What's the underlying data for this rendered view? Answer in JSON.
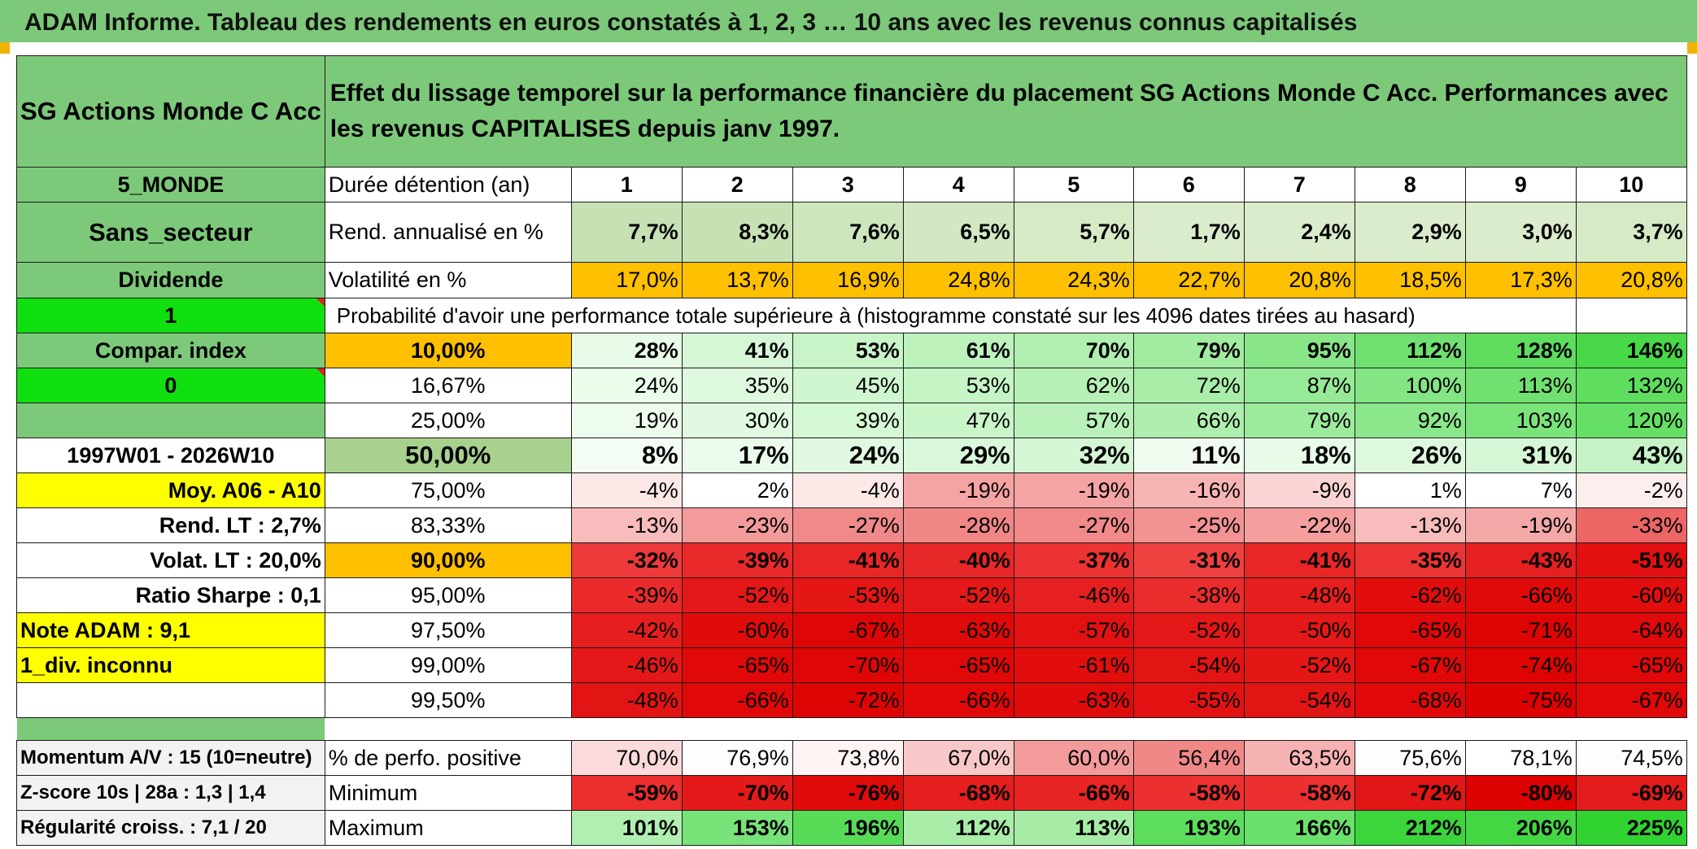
{
  "title": "ADAM Informe. Tableau des rendements en euros constatés à 1, 2, 3 … 10 ans avec les revenus connus capitalisés",
  "fund_name": "SG Actions Monde C Acc",
  "description": "Effet du lissage temporel sur la performance financière du placement SG Actions Monde C Acc. Performances avec les revenus CAPITALISES depuis janv 1997.",
  "side": {
    "zone": "5_MONDE",
    "secteur": "Sans_secteur",
    "dividende": "Dividende",
    "flag1": "1",
    "compar": "Compar. index",
    "flag0": "0",
    "period": "1997W01 - 2026W10",
    "moy": "Moy. A06 - A10",
    "rend_lt": "Rend. LT :    2,7%",
    "volat_lt": "Volat. LT :    20,0%",
    "sharpe": "Ratio Sharpe :    0,1",
    "note": "Note ADAM : 9,1",
    "div": "1_div. inconnu",
    "momentum": "Momentum A/V : 15 (10=neutre)",
    "zscore": "Z-score 10s | 28a : 1,3 | 1,4",
    "regularite": "Régularité croiss. : 7,1 / 20"
  },
  "labels": {
    "duree": "Durée détention (an)",
    "rend": "Rend. annualisé en %",
    "vol": "Volatilité en %",
    "proba": "Probabilité d'avoir une performance totale supérieure à (histogramme constaté sur les 4096 dates tirées au hasard)",
    "positive": "% de perfo. positive",
    "minimum": "Minimum",
    "maximum": "Maximum"
  },
  "years": [
    "1",
    "2",
    "3",
    "4",
    "5",
    "6",
    "7",
    "8",
    "9",
    "10"
  ],
  "rend_values": [
    "7,7%",
    "8,3%",
    "7,6%",
    "6,5%",
    "5,7%",
    "1,7%",
    "2,4%",
    "2,9%",
    "3,0%",
    "3,7%"
  ],
  "vol_values": [
    "17,0%",
    "13,7%",
    "16,9%",
    "24,8%",
    "24,3%",
    "22,7%",
    "20,8%",
    "18,5%",
    "17,3%",
    "20,8%"
  ],
  "prob_rows": [
    {
      "label": "10,00%",
      "values": [
        "28%",
        "41%",
        "53%",
        "61%",
        "70%",
        "79%",
        "95%",
        "112%",
        "128%",
        "146%"
      ]
    },
    {
      "label": "16,67%",
      "values": [
        "24%",
        "35%",
        "45%",
        "53%",
        "62%",
        "72%",
        "87%",
        "100%",
        "113%",
        "132%"
      ]
    },
    {
      "label": "25,00%",
      "values": [
        "19%",
        "30%",
        "39%",
        "47%",
        "57%",
        "66%",
        "79%",
        "92%",
        "103%",
        "120%"
      ]
    },
    {
      "label": "50,00%",
      "values": [
        "8%",
        "17%",
        "24%",
        "29%",
        "32%",
        "11%",
        "18%",
        "26%",
        "31%",
        "43%"
      ]
    },
    {
      "label": "75,00%",
      "values": [
        "-4%",
        "2%",
        "-4%",
        "-19%",
        "-19%",
        "-16%",
        "-9%",
        "1%",
        "7%",
        "-2%"
      ]
    },
    {
      "label": "83,33%",
      "values": [
        "-13%",
        "-23%",
        "-27%",
        "-28%",
        "-27%",
        "-25%",
        "-22%",
        "-13%",
        "-19%",
        "-33%"
      ]
    },
    {
      "label": "90,00%",
      "values": [
        "-32%",
        "-39%",
        "-41%",
        "-40%",
        "-37%",
        "-31%",
        "-41%",
        "-35%",
        "-43%",
        "-51%"
      ]
    },
    {
      "label": "95,00%",
      "values": [
        "-39%",
        "-52%",
        "-53%",
        "-52%",
        "-46%",
        "-38%",
        "-48%",
        "-62%",
        "-66%",
        "-60%"
      ]
    },
    {
      "label": "97,50%",
      "values": [
        "-42%",
        "-60%",
        "-67%",
        "-63%",
        "-57%",
        "-52%",
        "-50%",
        "-65%",
        "-71%",
        "-64%"
      ]
    },
    {
      "label": "99,00%",
      "values": [
        "-46%",
        "-65%",
        "-70%",
        "-65%",
        "-61%",
        "-54%",
        "-52%",
        "-67%",
        "-74%",
        "-65%"
      ]
    },
    {
      "label": "99,50%",
      "values": [
        "-48%",
        "-66%",
        "-72%",
        "-66%",
        "-63%",
        "-55%",
        "-54%",
        "-68%",
        "-75%",
        "-67%"
      ]
    }
  ],
  "positive_values": [
    "70,0%",
    "76,9%",
    "73,8%",
    "67,0%",
    "60,0%",
    "56,4%",
    "63,5%",
    "75,6%",
    "78,1%",
    "74,5%"
  ],
  "min_values": [
    "-59%",
    "-70%",
    "-76%",
    "-68%",
    "-66%",
    "-58%",
    "-58%",
    "-72%",
    "-80%",
    "-69%"
  ],
  "max_values": [
    "101%",
    "153%",
    "196%",
    "112%",
    "113%",
    "193%",
    "166%",
    "212%",
    "206%",
    "225%"
  ],
  "colors": {
    "header_green": "#7dc97a",
    "bright_green": "#10e010",
    "orange": "#ffc000",
    "yellow": "#ffff00",
    "red_text": "#d10000",
    "rend_cells": [
      "#c6e2b5",
      "#c6e2b5",
      "#cde6bd",
      "#d2e8c2",
      "#d6eac6",
      "#dbeccc",
      "#dbeccc",
      "#dbeccc",
      "#dbeccc",
      "#d6eac6"
    ],
    "prob_rows": [
      [
        "#e8fbe8",
        "#d6f7d6",
        "#c8f4c8",
        "#bdf2bd",
        "#b0efb0",
        "#a2eca2",
        "#88e688",
        "#70e170",
        "#5edd5e",
        "#48d848"
      ],
      [
        "#ebfceb",
        "#def9de",
        "#cff6cf",
        "#c5f4c5",
        "#b6f0b6",
        "#a8eda8",
        "#96e996",
        "#84e584",
        "#70e170",
        "#5edd5e"
      ],
      [
        "#eefcee",
        "#e0f9e0",
        "#d4f7d4",
        "#c9f5c9",
        "#baf1ba",
        "#aeeeae",
        "#9cea9c",
        "#8be78b",
        "#7ae47a",
        "#66df66"
      ],
      [
        "#f4fdf4",
        "#ebfbeb",
        "#e1f9e1",
        "#d9f7d9",
        "#d4f6d4",
        "#f1fcf1",
        "#e8fae8",
        "#def8de",
        "#d6f7d6",
        "#c6f3c6"
      ],
      [
        "#fde8e8",
        "#ffffff",
        "#fde8e8",
        "#f5a3a3",
        "#f5a3a3",
        "#f7b4b4",
        "#fad4d4",
        "#ffffff",
        "#ffffff",
        "#fdeeee"
      ],
      [
        "#f8bcbc",
        "#f39a9a",
        "#f08a8a",
        "#f08686",
        "#f08a8a",
        "#f29292",
        "#f49e9e",
        "#f8bcbc",
        "#f5a8a8",
        "#ec6666"
      ],
      [
        "#ee3a3a",
        "#ea2a2a",
        "#e82626",
        "#e82828",
        "#ec3232",
        "#ef4040",
        "#e82626",
        "#ec3434",
        "#e62020",
        "#e21010"
      ],
      [
        "#ea2a2a",
        "#e41818",
        "#e41616",
        "#e41818",
        "#e62020",
        "#ea2c2c",
        "#e61e1e",
        "#e20e0e",
        "#e00a0a",
        "#e20e0e"
      ],
      [
        "#e61e1e",
        "#e00c0c",
        "#de0606",
        "#e00a0a",
        "#e21212",
        "#e41818",
        "#e41818",
        "#e00808",
        "#de0404",
        "#e00a0a"
      ],
      [
        "#e41818",
        "#e00808",
        "#de0606",
        "#e00808",
        "#e20e0e",
        "#e21414",
        "#e41616",
        "#e00808",
        "#de0404",
        "#e00808"
      ],
      [
        "#e21414",
        "#e00808",
        "#de0404",
        "#e00808",
        "#e00c0c",
        "#e21212",
        "#e21414",
        "#e00808",
        "#de0202",
        "#e00808"
      ]
    ],
    "positive_cells": [
      "#fadada",
      "#fdfdfd",
      "#fef4f4",
      "#f8c8c8",
      "#f39a9a",
      "#f08888",
      "#f6b2b2",
      "#fdfdfd",
      "#ffffff",
      "#fdfdfd"
    ],
    "min_cells": [
      "#ec2e2e",
      "#e41a1a",
      "#e00c0c",
      "#e61e1e",
      "#e82424",
      "#ec3030",
      "#ec3030",
      "#e21616",
      "#de0202",
      "#e41c1c"
    ],
    "max_cells": [
      "#b0efb0",
      "#78e378",
      "#58dc58",
      "#a8eda8",
      "#a6eca6",
      "#5cdd5c",
      "#6ae16a",
      "#3cd53c",
      "#44d744",
      "#30d330"
    ]
  }
}
